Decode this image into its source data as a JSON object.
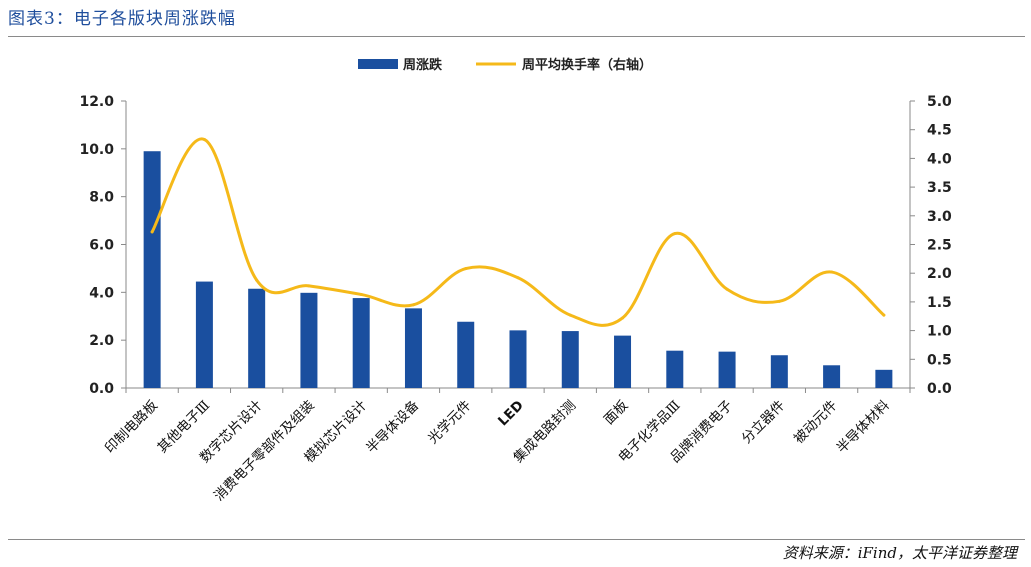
{
  "page": {
    "title": "图表3：电子各版块周涨跌幅",
    "source": "资料来源：iFind，太平洋证券整理"
  },
  "chart_data": {
    "type": "bar",
    "categories": [
      "印制电路板",
      "其他电子Ⅲ",
      "数字芯片设计",
      "消费电子零部件及组装",
      "模拟芯片设计",
      "半导体设备",
      "光学元件",
      "LED",
      "集成电路封测",
      "面板",
      "电子化学品Ⅲ",
      "品牌消费电子",
      "分立器件",
      "被动元件",
      "半导体材料"
    ],
    "series": [
      {
        "name": "周涨跌",
        "type": "bar",
        "axis": "left",
        "color": "#1a4f9f",
        "values": [
          9.9,
          4.45,
          4.15,
          3.98,
          3.76,
          3.33,
          2.77,
          2.41,
          2.38,
          2.19,
          1.56,
          1.52,
          1.37,
          0.95,
          0.76
        ]
      },
      {
        "name": "周平均换手率（右轴）",
        "type": "line",
        "axis": "right",
        "color": "#f5b919",
        "values": [
          2.72,
          4.33,
          1.88,
          1.78,
          1.63,
          1.45,
          2.08,
          1.92,
          1.27,
          1.22,
          2.69,
          1.72,
          1.51,
          2.02,
          1.27
        ]
      }
    ],
    "y_left": {
      "min": 0,
      "max": 12,
      "step": 2,
      "tick_labels": [
        "0.0",
        "2.0",
        "4.0",
        "6.0",
        "8.0",
        "10.0",
        "12.0"
      ]
    },
    "y_right": {
      "min": 0,
      "max": 5,
      "step": 0.5,
      "tick_labels": [
        "0.0",
        "0.5",
        "1.0",
        "1.5",
        "2.0",
        "2.5",
        "3.0",
        "3.5",
        "4.0",
        "4.5",
        "5.0"
      ]
    },
    "legend_position": "top-center",
    "grid": false
  }
}
